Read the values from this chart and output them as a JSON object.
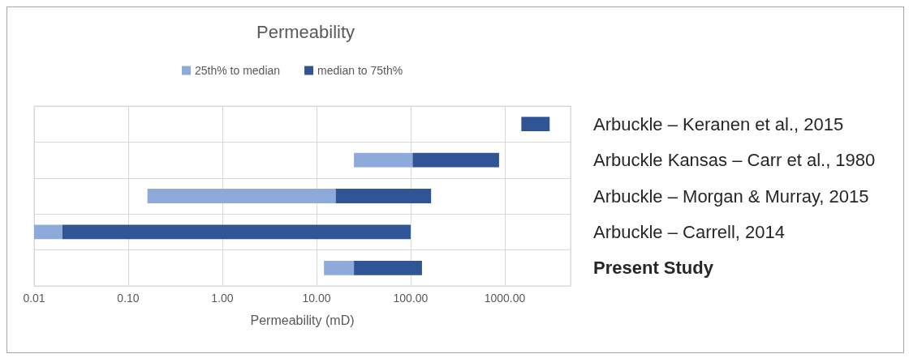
{
  "chart_data": {
    "type": "bar",
    "orientation": "horizontal",
    "title": "Permeability",
    "xlabel": "Permeability (mD)",
    "categories": [
      "Arbuckle – Keranen et al., 2015",
      "Arbuckle Kansas – Carr et al., 1980",
      "Arbuckle – Morgan & Murray, 2015",
      "Arbuckle – Carrell, 2014",
      "Present Study"
    ],
    "series": [
      {
        "name": "25th% to median",
        "color": "#8eaadb",
        "base": [
          null,
          25,
          0.16,
          0.01,
          12
        ],
        "values": [
          null,
          80,
          15.84,
          0.01,
          13
        ]
      },
      {
        "name": "median to 75th%",
        "color": "#2f5597",
        "base": [
          1500,
          105,
          16,
          0.02,
          25
        ],
        "values": [
          1500,
          765,
          149,
          99.98,
          107
        ]
      }
    ],
    "log": "x",
    "xlim": [
      0.01,
      5000
    ],
    "xticks": [
      {
        "value": 0.01,
        "label": "0.01"
      },
      {
        "value": 0.1,
        "label": "0.10"
      },
      {
        "value": 1,
        "label": "1.00"
      },
      {
        "value": 10,
        "label": "10.00"
      },
      {
        "value": 100,
        "label": "100.00"
      },
      {
        "value": 1000,
        "label": "1000.00"
      }
    ],
    "grid": true,
    "legend": "top"
  }
}
